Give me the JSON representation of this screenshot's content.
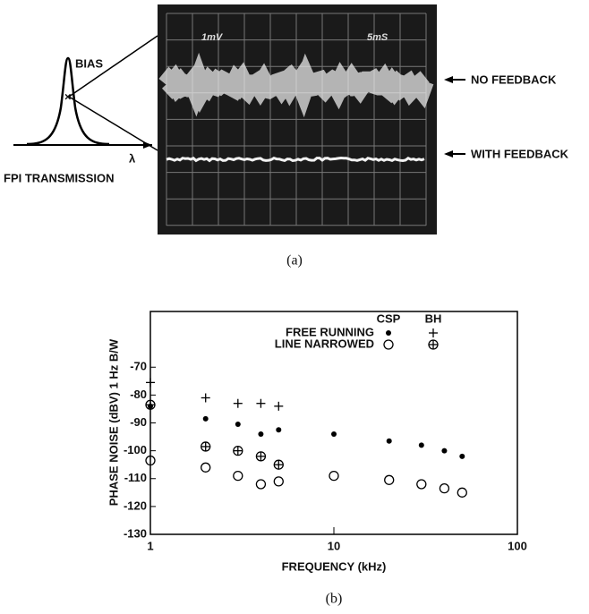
{
  "panel_a": {
    "screen_labels": [
      "1mV",
      "5mS"
    ],
    "bias": "BIAS",
    "lambda": "λ",
    "fpi": "FPI TRANSMISSION",
    "no_feedback": "NO FEEDBACK",
    "with_feedback": "WITH FEEDBACK",
    "caption": "(a)"
  },
  "chart_data": {
    "type": "scatter",
    "ylabel": "PHASE NOISE (dBV) 1 Hz B/W",
    "xlabel": "FREQUENCY (kHz)",
    "caption": "(b)",
    "log_x": true,
    "xlim": [
      1,
      100
    ],
    "xticks": [
      1,
      10,
      100
    ],
    "ylim": [
      -130,
      -50
    ],
    "yticks": [
      -130,
      -120,
      -110,
      -100,
      -90,
      -80,
      -70
    ],
    "legend": {
      "columns": [
        "CSP",
        "BH"
      ],
      "rows": [
        "FREE RUNNING",
        "LINE NARROWED"
      ]
    },
    "series": [
      {
        "marker": "dot",
        "color": "#000000",
        "x": [
          1,
          2,
          3,
          4,
          5,
          10,
          20,
          30,
          40,
          50
        ],
        "values": [
          -84,
          -88.5,
          -90.5,
          -94,
          -92.5,
          -94,
          -96.5,
          -98,
          -100,
          -102
        ]
      },
      {
        "marker": "plus",
        "color": "#000000",
        "x": [
          1,
          2,
          3,
          4,
          5
        ],
        "values": [
          -75.5,
          -81,
          -83,
          -83,
          -84
        ]
      },
      {
        "marker": "circle",
        "color": "#000000",
        "x": [
          1,
          2,
          3,
          4,
          5,
          10,
          20,
          30,
          40,
          50
        ],
        "values": [
          -103.5,
          -106,
          -109,
          -112,
          -111,
          -109,
          -110.5,
          -112,
          -113.5,
          -115
        ]
      },
      {
        "marker": "circle-plus",
        "color": "#000000",
        "x": [
          1,
          2,
          3,
          4,
          5
        ],
        "values": [
          -83.5,
          -98.5,
          -100,
          -102,
          -105
        ]
      }
    ]
  }
}
